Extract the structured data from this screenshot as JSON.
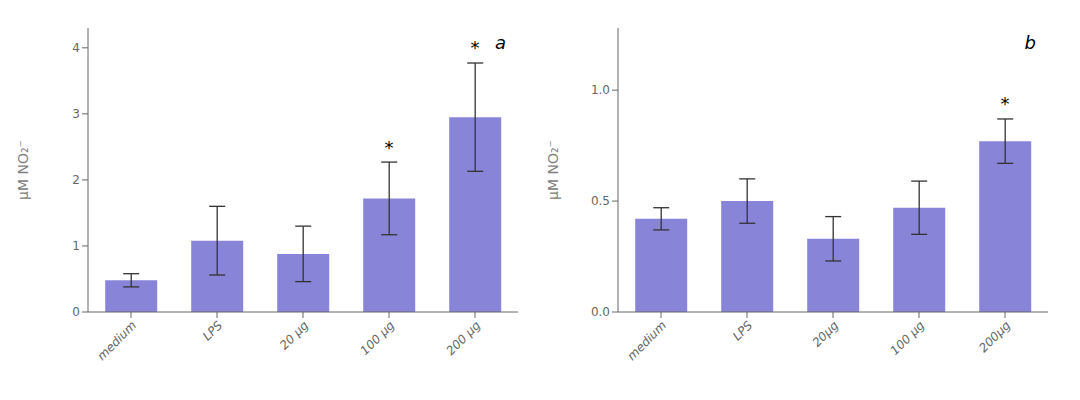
{
  "chart_data": [
    {
      "type": "bar",
      "title": "a",
      "categories": [
        "medium",
        "LPS",
        "20 μg",
        "100 μg",
        "200 μg"
      ],
      "values": [
        0.48,
        1.08,
        0.88,
        1.72,
        2.95
      ],
      "errors": [
        0.1,
        0.52,
        0.42,
        0.55,
        0.82
      ],
      "ylim": [
        0,
        4.3
      ],
      "yticks": [
        0,
        1,
        2,
        3,
        4
      ],
      "y_label": "μM NO₂⁻",
      "annotations": [
        {
          "text": "*",
          "category": "100 μg"
        },
        {
          "text": "*",
          "category": "200 μg"
        }
      ],
      "color": "#8884d8",
      "grid": false
    },
    {
      "type": "bar",
      "title": "b",
      "categories": [
        "medium",
        "LPS",
        "20μg",
        "100 μg",
        "200μg"
      ],
      "values": [
        0.42,
        0.5,
        0.33,
        0.47,
        0.77
      ],
      "errors": [
        0.05,
        0.1,
        0.1,
        0.12,
        0.1
      ],
      "ylim": [
        0,
        1.28
      ],
      "yticks": [
        {
          "value": 0,
          "label": "0.0"
        },
        0.5,
        {
          "value": 1,
          "label": "1.0"
        }
      ],
      "y_label": "μM NO₂⁻",
      "annotations": [
        {
          "text": "*",
          "category": "200μg"
        }
      ],
      "color": "#8884d8",
      "grid": false
    }
  ]
}
